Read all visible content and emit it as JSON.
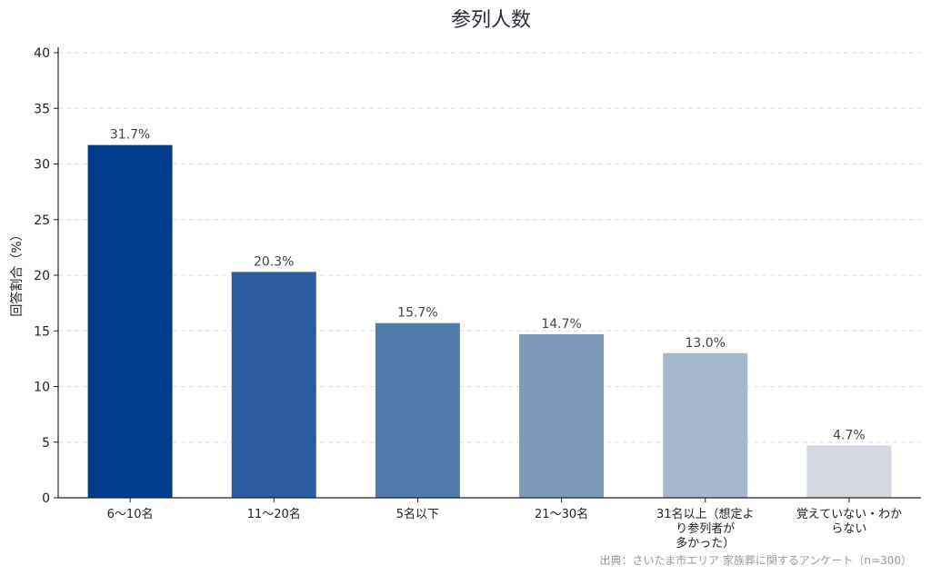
{
  "chart_data": {
    "type": "bar",
    "title": "参列人数",
    "ylabel": "回答割合（%）",
    "xlabel": "",
    "categories": [
      "6〜10名",
      "11〜20名",
      "5名以下",
      "21〜30名",
      "31名以上（想定より参列者が多かった）",
      "覚えていない・わからない"
    ],
    "category_lines": [
      [
        "6〜10名"
      ],
      [
        "11〜20名"
      ],
      [
        "5名以下"
      ],
      [
        "21〜30名"
      ],
      [
        "31名以上（想定よ",
        "り参列者が",
        "多かった）"
      ],
      [
        "覚えていない・わか",
        "らない"
      ]
    ],
    "values": [
      31.7,
      20.3,
      15.7,
      14.7,
      13.0,
      4.7
    ],
    "data_labels": [
      "31.7%",
      "20.3%",
      "15.7%",
      "14.7%",
      "13.0%",
      "4.7%"
    ],
    "colors": [
      "#003c8c",
      "#2b5d9e",
      "#537cac",
      "#7e9bba",
      "#a6b8cc",
      "#d3d9de"
    ],
    "ylim": [
      0,
      40
    ],
    "yticks": [
      0,
      5,
      10,
      15,
      20,
      25,
      30,
      35,
      40
    ],
    "grid": true,
    "source": "出典：さいたま市エリア 家族葬に関するアンケート（n=300）"
  }
}
